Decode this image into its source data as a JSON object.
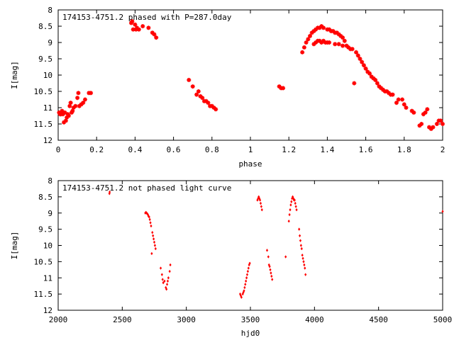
{
  "chart_data": [
    {
      "type": "scatter",
      "title": "174153-4751.2 phased with P=287.0day",
      "xlabel": "phase",
      "ylabel": "I[mag]",
      "xlim": [
        0,
        2
      ],
      "ylim": [
        12,
        8
      ],
      "y_inverted": true,
      "xticks": [
        "0",
        "0.2",
        "0.4",
        "0.6",
        "0.8",
        "1",
        "1.2",
        "1.4",
        "1.6",
        "1.8",
        "2"
      ],
      "yticks": [
        "8",
        "8.5",
        "9",
        "9.5",
        "10",
        "10.5",
        "11",
        "11.5",
        "12"
      ],
      "xtick_values": [
        0,
        0.2,
        0.4,
        0.6,
        0.8,
        1,
        1.2,
        1.4,
        1.6,
        1.8,
        2
      ],
      "ytick_values": [
        8,
        8.5,
        9,
        9.5,
        10,
        10.5,
        11,
        11.5,
        12
      ],
      "marker": "star",
      "color": "#ff0000",
      "points": [
        [
          0.005,
          11.15
        ],
        [
          0.01,
          11.2
        ],
        [
          0.015,
          11.2
        ],
        [
          0.02,
          11.1
        ],
        [
          0.025,
          11.2
        ],
        [
          0.03,
          11.45
        ],
        [
          0.035,
          11.15
        ],
        [
          0.04,
          11.4
        ],
        [
          0.045,
          11.3
        ],
        [
          0.05,
          11.2
        ],
        [
          0.055,
          11.25
        ],
        [
          0.06,
          10.95
        ],
        [
          0.065,
          10.85
        ],
        [
          0.07,
          11.15
        ],
        [
          0.075,
          11.1
        ],
        [
          0.08,
          11.0
        ],
        [
          0.09,
          10.95
        ],
        [
          0.1,
          10.7
        ],
        [
          0.105,
          10.55
        ],
        [
          0.11,
          10.95
        ],
        [
          0.12,
          10.9
        ],
        [
          0.13,
          10.85
        ],
        [
          0.14,
          10.75
        ],
        [
          0.16,
          10.55
        ],
        [
          0.17,
          10.55
        ],
        [
          0.38,
          8.4
        ],
        [
          0.385,
          8.35
        ],
        [
          0.39,
          8.6
        ],
        [
          0.4,
          8.45
        ],
        [
          0.405,
          8.6
        ],
        [
          0.41,
          8.55
        ],
        [
          0.42,
          8.6
        ],
        [
          0.44,
          8.5
        ],
        [
          0.47,
          8.55
        ],
        [
          0.49,
          8.7
        ],
        [
          0.5,
          8.75
        ],
        [
          0.51,
          8.85
        ],
        [
          0.68,
          10.15
        ],
        [
          0.7,
          10.35
        ],
        [
          0.72,
          10.6
        ],
        [
          0.73,
          10.5
        ],
        [
          0.74,
          10.65
        ],
        [
          0.75,
          10.7
        ],
        [
          0.76,
          10.8
        ],
        [
          0.77,
          10.8
        ],
        [
          0.78,
          10.85
        ],
        [
          0.79,
          10.95
        ],
        [
          0.8,
          10.95
        ],
        [
          0.81,
          11.0
        ],
        [
          0.82,
          11.05
        ],
        [
          1.15,
          10.35
        ],
        [
          1.16,
          10.4
        ],
        [
          1.17,
          10.4
        ],
        [
          1.27,
          9.3
        ],
        [
          1.28,
          9.15
        ],
        [
          1.29,
          9.0
        ],
        [
          1.3,
          8.9
        ],
        [
          1.31,
          8.8
        ],
        [
          1.32,
          8.7
        ],
        [
          1.33,
          8.65
        ],
        [
          1.34,
          8.6
        ],
        [
          1.35,
          8.55
        ],
        [
          1.36,
          8.55
        ],
        [
          1.37,
          8.5
        ],
        [
          1.38,
          8.55
        ],
        [
          1.33,
          9.05
        ],
        [
          1.34,
          9.0
        ],
        [
          1.35,
          8.95
        ],
        [
          1.36,
          8.95
        ],
        [
          1.37,
          9.0
        ],
        [
          1.38,
          8.95
        ],
        [
          1.39,
          9.0
        ],
        [
          1.4,
          9.0
        ],
        [
          1.41,
          9.0
        ],
        [
          1.4,
          8.6
        ],
        [
          1.41,
          8.6
        ],
        [
          1.42,
          8.65
        ],
        [
          1.43,
          8.65
        ],
        [
          1.44,
          8.7
        ],
        [
          1.45,
          8.7
        ],
        [
          1.46,
          8.75
        ],
        [
          1.47,
          8.8
        ],
        [
          1.48,
          8.85
        ],
        [
          1.49,
          8.95
        ],
        [
          1.44,
          9.05
        ],
        [
          1.46,
          9.05
        ],
        [
          1.48,
          9.1
        ],
        [
          1.5,
          9.1
        ],
        [
          1.51,
          9.15
        ],
        [
          1.52,
          9.2
        ],
        [
          1.53,
          9.2
        ],
        [
          1.54,
          10.25
        ],
        [
          1.55,
          9.3
        ],
        [
          1.56,
          9.4
        ],
        [
          1.57,
          9.5
        ],
        [
          1.58,
          9.6
        ],
        [
          1.59,
          9.7
        ],
        [
          1.6,
          9.8
        ],
        [
          1.61,
          9.9
        ],
        [
          1.62,
          9.95
        ],
        [
          1.63,
          10.05
        ],
        [
          1.64,
          10.1
        ],
        [
          1.65,
          10.15
        ],
        [
          1.66,
          10.25
        ],
        [
          1.67,
          10.35
        ],
        [
          1.68,
          10.4
        ],
        [
          1.69,
          10.45
        ],
        [
          1.7,
          10.5
        ],
        [
          1.71,
          10.5
        ],
        [
          1.72,
          10.55
        ],
        [
          1.73,
          10.6
        ],
        [
          1.74,
          10.6
        ],
        [
          1.76,
          10.85
        ],
        [
          1.77,
          10.75
        ],
        [
          1.79,
          10.75
        ],
        [
          1.8,
          10.9
        ],
        [
          1.81,
          11.0
        ],
        [
          1.84,
          11.1
        ],
        [
          1.85,
          11.15
        ],
        [
          1.88,
          11.55
        ],
        [
          1.89,
          11.5
        ],
        [
          1.9,
          11.2
        ],
        [
          1.91,
          11.15
        ],
        [
          1.92,
          11.05
        ],
        [
          1.93,
          11.6
        ],
        [
          1.94,
          11.65
        ],
        [
          1.95,
          11.6
        ],
        [
          1.97,
          11.5
        ],
        [
          1.98,
          11.4
        ],
        [
          1.99,
          11.4
        ],
        [
          2.0,
          11.5
        ]
      ]
    },
    {
      "type": "scatter",
      "title": "174153-4751.2 not phased light curve",
      "xlabel": "hjd0",
      "ylabel": "I[mag]",
      "xlim": [
        2000,
        5000
      ],
      "ylim": [
        12,
        8
      ],
      "y_inverted": true,
      "xticks": [
        "2000",
        "2500",
        "3000",
        "3500",
        "4000",
        "4500",
        "5000"
      ],
      "yticks": [
        "8",
        "8.5",
        "9",
        "9.5",
        "10",
        "10.5",
        "11",
        "11.5",
        "12"
      ],
      "xtick_values": [
        2000,
        2500,
        3000,
        3500,
        4000,
        4500,
        5000
      ],
      "ytick_values": [
        8,
        8.5,
        9,
        9.5,
        10,
        10.5,
        11,
        11.5,
        12
      ],
      "marker": "diamond",
      "color": "#ff0000",
      "points": [
        [
          2400,
          8.4
        ],
        [
          2402,
          8.35
        ],
        [
          2680,
          9.0
        ],
        [
          2685,
          8.98
        ],
        [
          2690,
          9.0
        ],
        [
          2695,
          9.02
        ],
        [
          2700,
          9.05
        ],
        [
          2705,
          9.1
        ],
        [
          2710,
          9.12
        ],
        [
          2715,
          9.2
        ],
        [
          2720,
          9.3
        ],
        [
          2725,
          9.4
        ],
        [
          2730,
          10.25
        ],
        [
          2735,
          9.6
        ],
        [
          2740,
          9.7
        ],
        [
          2745,
          9.8
        ],
        [
          2750,
          9.9
        ],
        [
          2755,
          10.0
        ],
        [
          2760,
          10.1
        ],
        [
          2800,
          10.7
        ],
        [
          2810,
          10.9
        ],
        [
          2815,
          11.05
        ],
        [
          2820,
          11.15
        ],
        [
          2830,
          11.1
        ],
        [
          2840,
          11.3
        ],
        [
          2845,
          11.35
        ],
        [
          2850,
          11.2
        ],
        [
          2855,
          11.1
        ],
        [
          2860,
          11.0
        ],
        [
          2870,
          10.8
        ],
        [
          2875,
          10.6
        ],
        [
          3420,
          11.5
        ],
        [
          3425,
          11.55
        ],
        [
          3430,
          11.6
        ],
        [
          3440,
          11.5
        ],
        [
          3445,
          11.45
        ],
        [
          3450,
          11.4
        ],
        [
          3455,
          11.3
        ],
        [
          3460,
          11.2
        ],
        [
          3465,
          11.1
        ],
        [
          3470,
          11.0
        ],
        [
          3475,
          10.9
        ],
        [
          3480,
          10.8
        ],
        [
          3485,
          10.7
        ],
        [
          3490,
          10.6
        ],
        [
          3495,
          10.55
        ],
        [
          3555,
          8.6
        ],
        [
          3560,
          8.55
        ],
        [
          3565,
          8.5
        ],
        [
          3570,
          8.55
        ],
        [
          3575,
          8.6
        ],
        [
          3580,
          8.7
        ],
        [
          3585,
          8.8
        ],
        [
          3590,
          8.9
        ],
        [
          3630,
          10.15
        ],
        [
          3640,
          10.35
        ],
        [
          3645,
          10.6
        ],
        [
          3650,
          10.65
        ],
        [
          3655,
          10.75
        ],
        [
          3660,
          10.85
        ],
        [
          3665,
          10.95
        ],
        [
          3670,
          11.05
        ],
        [
          3775,
          10.35
        ],
        [
          3800,
          9.25
        ],
        [
          3805,
          9.05
        ],
        [
          3810,
          8.9
        ],
        [
          3815,
          8.75
        ],
        [
          3820,
          8.65
        ],
        [
          3825,
          8.55
        ],
        [
          3830,
          8.5
        ],
        [
          3835,
          8.55
        ],
        [
          3840,
          8.6
        ],
        [
          3845,
          8.6
        ],
        [
          3850,
          8.7
        ],
        [
          3855,
          8.8
        ],
        [
          3860,
          8.9
        ],
        [
          3880,
          9.5
        ],
        [
          3885,
          9.7
        ],
        [
          3890,
          9.85
        ],
        [
          3895,
          10.0
        ],
        [
          3900,
          10.1
        ],
        [
          3905,
          10.3
        ],
        [
          3910,
          10.4
        ],
        [
          3915,
          10.5
        ],
        [
          3920,
          10.6
        ],
        [
          3925,
          10.7
        ],
        [
          3930,
          10.9
        ],
        [
          5000,
          8.95
        ]
      ]
    }
  ]
}
